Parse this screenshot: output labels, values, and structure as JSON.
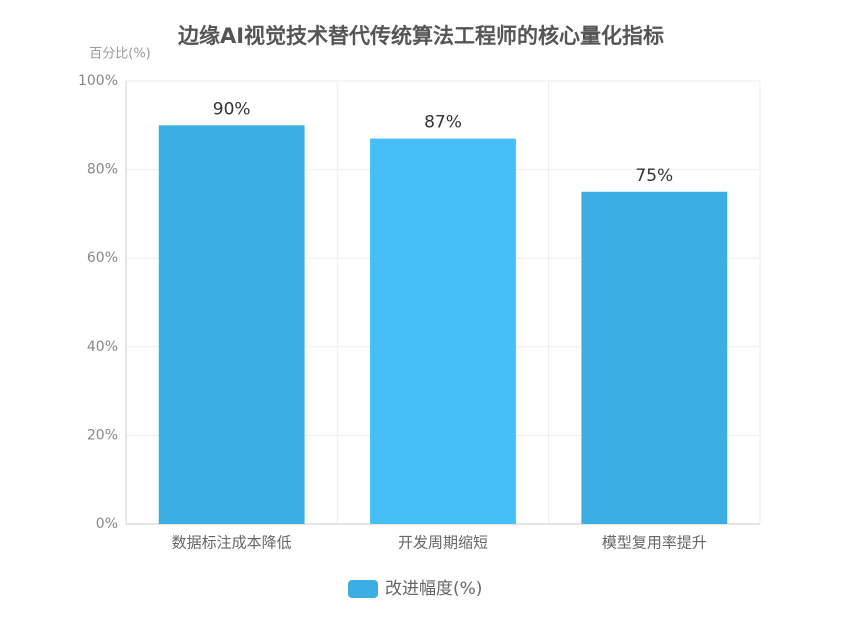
{
  "chart_data": {
    "type": "bar",
    "title": "边缘AI视觉技术替代传统算法工程师的核心量化指标",
    "y_axis_label": "百分比(%)",
    "categories": [
      "数据标注成本降低",
      "开发周期缩短",
      "模型复用率提升"
    ],
    "series": [
      {
        "name": "改进幅度(%)",
        "color": "#3daee1",
        "bar_colors": [
          "#3daee1",
          "#45bff6",
          "#3daee1"
        ],
        "values": [
          90,
          87,
          75
        ],
        "value_labels": [
          "90%",
          "87%",
          "75%"
        ]
      }
    ],
    "ylim": [
      0,
      100
    ],
    "yticks": [
      {
        "value": 0,
        "label": "0%"
      },
      {
        "value": 20,
        "label": "20%"
      },
      {
        "value": 40,
        "label": "40%"
      },
      {
        "value": 60,
        "label": "60%"
      },
      {
        "value": 80,
        "label": "80%"
      },
      {
        "value": 100,
        "label": "100%"
      }
    ],
    "grid": true,
    "legend": "bottom"
  }
}
